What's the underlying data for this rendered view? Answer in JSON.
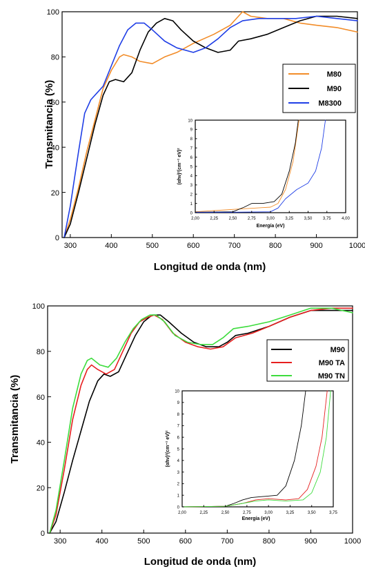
{
  "chart_data": [
    {
      "type": "line",
      "xlabel": "Longitud de onda (nm)",
      "ylabel": "Transmitancia (%)",
      "xlim": [
        280,
        1000
      ],
      "ylim": [
        0,
        100
      ],
      "xticks": [
        "300",
        "400",
        "500",
        "600",
        "700",
        "800",
        "900",
        "1000"
      ],
      "yticks": [
        "0",
        "20",
        "40",
        "60",
        "80",
        "100"
      ],
      "legend_position": "top-right",
      "series": [
        {
          "name": "M80",
          "color": "#f28c28",
          "points": [
            [
              285,
              0
            ],
            [
              300,
              8
            ],
            [
              320,
              22
            ],
            [
              340,
              38
            ],
            [
              360,
              52
            ],
            [
              380,
              66
            ],
            [
              400,
              74
            ],
            [
              420,
              80
            ],
            [
              430,
              81
            ],
            [
              450,
              80
            ],
            [
              470,
              78
            ],
            [
              500,
              77
            ],
            [
              530,
              80
            ],
            [
              560,
              82
            ],
            [
              600,
              86
            ],
            [
              650,
              90
            ],
            [
              690,
              94
            ],
            [
              710,
              98
            ],
            [
              720,
              100
            ],
            [
              740,
              98
            ],
            [
              780,
              97
            ],
            [
              820,
              97
            ],
            [
              860,
              95
            ],
            [
              900,
              94
            ],
            [
              950,
              93
            ],
            [
              1000,
              91
            ]
          ]
        },
        {
          "name": "M90",
          "color": "#000000",
          "points": [
            [
              285,
              0
            ],
            [
              300,
              6
            ],
            [
              320,
              20
            ],
            [
              340,
              35
            ],
            [
              360,
              50
            ],
            [
              380,
              63
            ],
            [
              395,
              69
            ],
            [
              410,
              70
            ],
            [
              430,
              69
            ],
            [
              450,
              73
            ],
            [
              470,
              83
            ],
            [
              490,
              91
            ],
            [
              510,
              95
            ],
            [
              530,
              97
            ],
            [
              550,
              96
            ],
            [
              570,
              92
            ],
            [
              600,
              87
            ],
            [
              630,
              84
            ],
            [
              660,
              82
            ],
            [
              690,
              83
            ],
            [
              710,
              87
            ],
            [
              740,
              88
            ],
            [
              780,
              90
            ],
            [
              820,
              93
            ],
            [
              860,
              96
            ],
            [
              900,
              98
            ],
            [
              950,
              98
            ],
            [
              1000,
              97
            ]
          ]
        },
        {
          "name": "M8300",
          "color": "#1f3ee6",
          "points": [
            [
              285,
              0
            ],
            [
              300,
              14
            ],
            [
              320,
              38
            ],
            [
              335,
              55
            ],
            [
              350,
              61
            ],
            [
              365,
              64
            ],
            [
              380,
              67
            ],
            [
              400,
              76
            ],
            [
              420,
              85
            ],
            [
              440,
              92
            ],
            [
              460,
              95
            ],
            [
              480,
              95
            ],
            [
              500,
              92
            ],
            [
              530,
              87
            ],
            [
              560,
              84
            ],
            [
              600,
              82
            ],
            [
              630,
              84
            ],
            [
              660,
              88
            ],
            [
              690,
              93
            ],
            [
              720,
              96
            ],
            [
              760,
              97
            ],
            [
              800,
              97
            ],
            [
              850,
              97
            ],
            [
              900,
              98
            ],
            [
              950,
              97
            ],
            [
              1000,
              96
            ]
          ]
        }
      ],
      "inset": {
        "xlabel": "Energía (eV)",
        "ylabel": "(αhv)²(cm⁻¹ eV)²",
        "xlim": [
          2.0,
          4.0
        ],
        "ylim": [
          0,
          10
        ],
        "xticks": [
          "2,00",
          "2,25",
          "2,50",
          "2,75",
          "3,00",
          "3,25",
          "3,50",
          "3,75",
          "4,00"
        ],
        "yticks": [
          "0",
          "1",
          "2",
          "3",
          "4",
          "5",
          "6",
          "7",
          "8",
          "9",
          "10"
        ],
        "series": [
          {
            "name": "M80",
            "color": "#f28c28",
            "points": [
              [
                2.0,
                0.1
              ],
              [
                2.2,
                0.2
              ],
              [
                2.4,
                0.3
              ],
              [
                2.6,
                0.4
              ],
              [
                2.8,
                0.5
              ],
              [
                3.0,
                0.6
              ],
              [
                3.1,
                1.0
              ],
              [
                3.2,
                2.5
              ],
              [
                3.3,
                5.5
              ],
              [
                3.38,
                10
              ]
            ]
          },
          {
            "name": "M90",
            "color": "#000000",
            "points": [
              [
                2.0,
                0.05
              ],
              [
                2.5,
                0.1
              ],
              [
                2.65,
                0.6
              ],
              [
                2.75,
                1.0
              ],
              [
                2.9,
                1.0
              ],
              [
                3.05,
                1.2
              ],
              [
                3.15,
                2.0
              ],
              [
                3.25,
                4.5
              ],
              [
                3.33,
                7.5
              ],
              [
                3.37,
                10
              ]
            ]
          },
          {
            "name": "M8300",
            "color": "#1f3ee6",
            "points": [
              [
                2.0,
                0.05
              ],
              [
                2.5,
                0.05
              ],
              [
                3.0,
                0.1
              ],
              [
                3.1,
                0.5
              ],
              [
                3.2,
                1.5
              ],
              [
                3.35,
                2.5
              ],
              [
                3.5,
                3.2
              ],
              [
                3.6,
                4.5
              ],
              [
                3.68,
                7
              ],
              [
                3.73,
                10
              ]
            ]
          }
        ]
      }
    },
    {
      "type": "line",
      "xlabel": "Longitud de onda (nm)",
      "ylabel": "Transmitancia (%)",
      "xlim": [
        270,
        1000
      ],
      "ylim": [
        0,
        100
      ],
      "xticks": [
        "300",
        "400",
        "500",
        "600",
        "700",
        "800",
        "900",
        "1000"
      ],
      "yticks": [
        "0",
        "20",
        "40",
        "60",
        "80",
        "100"
      ],
      "legend_position": "top-right",
      "series": [
        {
          "name": "M90",
          "color": "#000000",
          "points": [
            [
              275,
              0
            ],
            [
              290,
              5
            ],
            [
              310,
              18
            ],
            [
              330,
              32
            ],
            [
              350,
              45
            ],
            [
              370,
              58
            ],
            [
              390,
              67
            ],
            [
              405,
              70
            ],
            [
              420,
              69
            ],
            [
              440,
              71
            ],
            [
              460,
              79
            ],
            [
              480,
              87
            ],
            [
              500,
              93
            ],
            [
              520,
              96
            ],
            [
              540,
              96
            ],
            [
              560,
              93
            ],
            [
              590,
              88
            ],
            [
              620,
              84
            ],
            [
              650,
              82
            ],
            [
              680,
              82
            ],
            [
              700,
              84
            ],
            [
              720,
              87
            ],
            [
              750,
              88
            ],
            [
              800,
              91
            ],
            [
              850,
              95
            ],
            [
              900,
              98
            ],
            [
              950,
              98
            ],
            [
              1000,
              98
            ]
          ]
        },
        {
          "name": "M90 TA",
          "color": "#e61e1e",
          "points": [
            [
              275,
              0
            ],
            [
              290,
              8
            ],
            [
              310,
              28
            ],
            [
              330,
              50
            ],
            [
              350,
              65
            ],
            [
              365,
              72
            ],
            [
              375,
              74
            ],
            [
              390,
              72
            ],
            [
              410,
              70
            ],
            [
              430,
              72
            ],
            [
              450,
              80
            ],
            [
              470,
              88
            ],
            [
              490,
              93
            ],
            [
              510,
              95
            ],
            [
              525,
              96
            ],
            [
              545,
              94
            ],
            [
              570,
              88
            ],
            [
              600,
              84
            ],
            [
              630,
              82
            ],
            [
              660,
              81
            ],
            [
              690,
              82
            ],
            [
              720,
              86
            ],
            [
              760,
              88
            ],
            [
              800,
              91
            ],
            [
              850,
              95
            ],
            [
              900,
              98
            ],
            [
              950,
              99
            ],
            [
              1000,
              99
            ]
          ]
        },
        {
          "name": "M90 TN",
          "color": "#3ddc3d",
          "points": [
            [
              275,
              0
            ],
            [
              290,
              10
            ],
            [
              310,
              32
            ],
            [
              330,
              55
            ],
            [
              350,
              70
            ],
            [
              365,
              76
            ],
            [
              375,
              77
            ],
            [
              395,
              74
            ],
            [
              415,
              73
            ],
            [
              435,
              77
            ],
            [
              455,
              84
            ],
            [
              475,
              90
            ],
            [
              495,
              94
            ],
            [
              515,
              96
            ],
            [
              530,
              96
            ],
            [
              550,
              93
            ],
            [
              575,
              87
            ],
            [
              605,
              84
            ],
            [
              635,
              83
            ],
            [
              665,
              83
            ],
            [
              690,
              86
            ],
            [
              715,
              90
            ],
            [
              750,
              91
            ],
            [
              800,
              93
            ],
            [
              850,
              96
            ],
            [
              900,
              99
            ],
            [
              950,
              99
            ],
            [
              1000,
              97
            ]
          ]
        }
      ],
      "inset": {
        "xlabel": "Energía (eV)",
        "ylabel": "(αhv)²(cm⁻¹ eV)²",
        "xlim": [
          2.0,
          3.75
        ],
        "ylim": [
          0,
          10
        ],
        "xticks": [
          "2,00",
          "2,25",
          "2,50",
          "2,75",
          "3,00",
          "3,25",
          "3,50",
          "3,75"
        ],
        "yticks": [
          "0",
          "1",
          "2",
          "3",
          "4",
          "5",
          "6",
          "7",
          "8",
          "9",
          "10"
        ],
        "series": [
          {
            "name": "M90",
            "color": "#000000",
            "points": [
              [
                2.0,
                0
              ],
              [
                2.5,
                0.05
              ],
              [
                2.6,
                0.3
              ],
              [
                2.7,
                0.6
              ],
              [
                2.8,
                0.8
              ],
              [
                2.95,
                0.9
              ],
              [
                3.1,
                1.0
              ],
              [
                3.2,
                1.8
              ],
              [
                3.3,
                4
              ],
              [
                3.38,
                7
              ],
              [
                3.43,
                10
              ]
            ]
          },
          {
            "name": "M90 TA",
            "color": "#e61e1e",
            "points": [
              [
                2.0,
                0
              ],
              [
                2.5,
                0.05
              ],
              [
                2.7,
                0.3
              ],
              [
                2.85,
                0.6
              ],
              [
                3.0,
                0.7
              ],
              [
                3.2,
                0.6
              ],
              [
                3.35,
                0.7
              ],
              [
                3.45,
                1.5
              ],
              [
                3.55,
                3.5
              ],
              [
                3.62,
                6
              ],
              [
                3.68,
                10
              ]
            ]
          },
          {
            "name": "M90 TN",
            "color": "#3ddc3d",
            "points": [
              [
                2.0,
                0
              ],
              [
                2.5,
                0.05
              ],
              [
                2.7,
                0.3
              ],
              [
                2.85,
                0.5
              ],
              [
                3.0,
                0.6
              ],
              [
                3.2,
                0.5
              ],
              [
                3.4,
                0.6
              ],
              [
                3.5,
                1.2
              ],
              [
                3.6,
                3
              ],
              [
                3.67,
                6
              ],
              [
                3.72,
                10
              ]
            ]
          }
        ]
      }
    }
  ]
}
